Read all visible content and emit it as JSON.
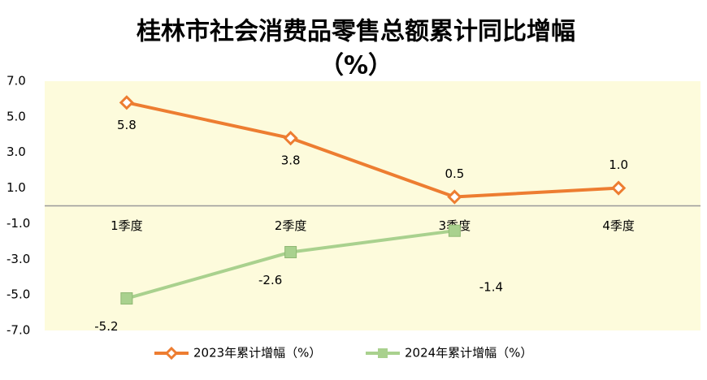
{
  "chart_data": {
    "type": "line",
    "title": "桂林市社会消费品零售总额累计同比增幅",
    "subtitle": "（%）",
    "categories": [
      "1季度",
      "2季度",
      "3季度",
      "4季度"
    ],
    "series": [
      {
        "name": "2023年累计增幅（%）",
        "color": "#ed7d31",
        "marker": "diamond",
        "values": [
          5.8,
          3.8,
          0.5,
          1.0
        ],
        "value_labels": [
          "5.8",
          "3.8",
          "0.5",
          "1.0"
        ]
      },
      {
        "name": "2024年累计增幅（%）",
        "color": "#a9d18e",
        "marker": "square",
        "values": [
          -5.2,
          -2.6,
          -1.4,
          null
        ],
        "value_labels": [
          "-5.2",
          "-2.6",
          "-1.4",
          null
        ]
      }
    ],
    "ylim": [
      -7,
      7
    ],
    "yticks": [
      {
        "value": 7,
        "label": "7.0"
      },
      {
        "value": 5,
        "label": "5.0"
      },
      {
        "value": 3,
        "label": "3.0"
      },
      {
        "value": 1,
        "label": "1.0"
      },
      {
        "value": -1,
        "label": "-1.0"
      },
      {
        "value": -3,
        "label": "-3.0"
      },
      {
        "value": -5,
        "label": "-5.0"
      },
      {
        "value": -7,
        "label": "-7.0"
      }
    ],
    "legend": "bottom"
  }
}
